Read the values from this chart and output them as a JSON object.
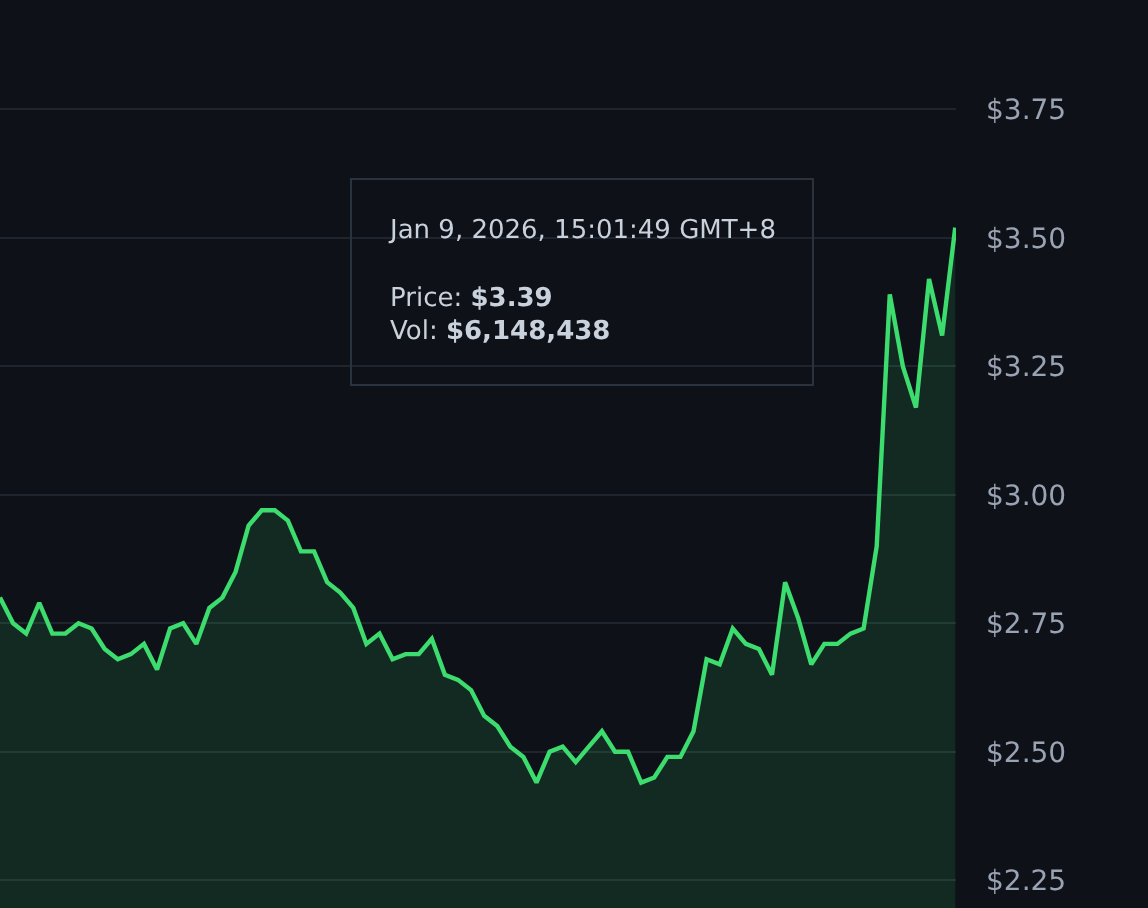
{
  "chart_data": {
    "type": "area",
    "categories": [
      null,
      null,
      null,
      null,
      null,
      null,
      null,
      null,
      null,
      null,
      null,
      null,
      null,
      null,
      null,
      null,
      null,
      null,
      null,
      null,
      null,
      null,
      null,
      null,
      null,
      null,
      null,
      null,
      null,
      null,
      null,
      null,
      null,
      null,
      null,
      null,
      null,
      null,
      null,
      null,
      null,
      null,
      null,
      null,
      null,
      null,
      null,
      null,
      null,
      null,
      null,
      null,
      null,
      null,
      null,
      null,
      null,
      null,
      null,
      null,
      null,
      null,
      null,
      null,
      null,
      null,
      null,
      null,
      null,
      null,
      null,
      null,
      null,
      null
    ],
    "series": [
      {
        "color": "#3ddc6e",
        "values": [
          2.8,
          2.75,
          2.73,
          2.79,
          2.73,
          2.73,
          2.75,
          2.74,
          2.7,
          2.68,
          2.69,
          2.71,
          2.66,
          2.74,
          2.75,
          2.71,
          2.78,
          2.8,
          2.85,
          2.94,
          2.97,
          2.97,
          2.95,
          2.89,
          2.89,
          2.83,
          2.81,
          2.78,
          2.71,
          2.73,
          2.68,
          2.69,
          2.69,
          2.72,
          2.65,
          2.64,
          2.62,
          2.57,
          2.55,
          2.51,
          2.49,
          2.44,
          2.5,
          2.51,
          2.48,
          2.51,
          2.54,
          2.5,
          2.5,
          2.44,
          2.45,
          2.49,
          2.49,
          2.54,
          2.68,
          2.67,
          2.74,
          2.71,
          2.7,
          2.65,
          2.83,
          2.76,
          2.67,
          2.71,
          2.71,
          2.73,
          2.74,
          2.9,
          3.39,
          3.25,
          3.17,
          3.42,
          3.31,
          3.52
        ]
      }
    ],
    "ylim": [
      2.196,
      3.963
    ],
    "yticks": [
      {
        "value": 2.25,
        "label": "$2.25"
      },
      {
        "value": 2.5,
        "label": "$2.50"
      },
      {
        "value": 2.75,
        "label": "$2.75"
      },
      {
        "value": 3.0,
        "label": "$3.00"
      },
      {
        "value": 3.25,
        "label": "$3.25"
      },
      {
        "value": 3.5,
        "label": "$3.50"
      },
      {
        "value": 3.75,
        "label": "$3.75"
      }
    ],
    "tick_labels": "y",
    "grid": "y",
    "legend": false,
    "marker": "none",
    "annotations": [
      "Jan 9, 2026, 15:01:49 GMT+8",
      "Price: $3.39",
      "Vol: $6,148,438"
    ]
  }
}
